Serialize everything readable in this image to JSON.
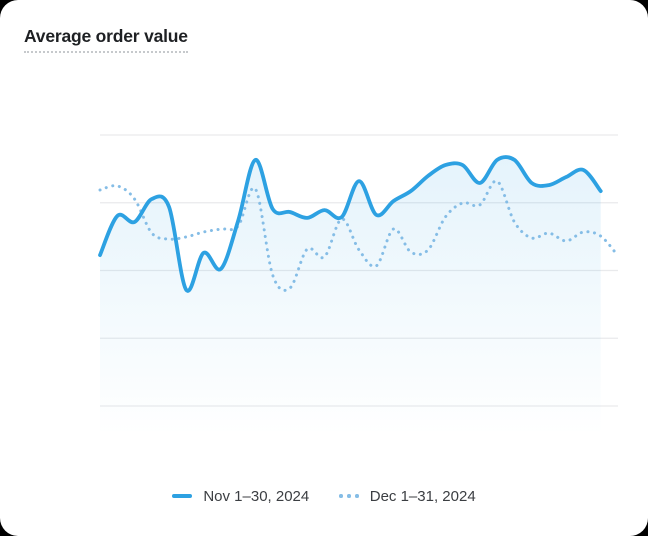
{
  "card": {
    "title": "Average order value"
  },
  "legend": {
    "items": [
      {
        "label": "Nov 1–30, 2024",
        "style": "solid"
      },
      {
        "label": "Dec 1–31, 2024",
        "style": "dotted"
      }
    ]
  },
  "chart_data": {
    "type": "line",
    "title": "Average order value",
    "xlabel": "",
    "ylabel": "",
    "axis_tick_labels_visible": false,
    "grid": "horizontal",
    "gridline_values": [
      0,
      25,
      50,
      75,
      100
    ],
    "ylim": [
      0,
      100
    ],
    "legend_position": "bottom-center",
    "series": [
      {
        "name": "Nov 1–30, 2024",
        "style": "solid",
        "color": "#2da1e2",
        "area_fill": true,
        "x_days": [
          1,
          2,
          3,
          4,
          5,
          6,
          7,
          8,
          9,
          10,
          11,
          12,
          13,
          14,
          15,
          16,
          17,
          18,
          19,
          20,
          21,
          22,
          23,
          24,
          25,
          26,
          27,
          28,
          29,
          30
        ],
        "values": [
          55.7,
          70.1,
          67.9,
          76.4,
          73.4,
          42.8,
          56.5,
          50.6,
          68.3,
          90.8,
          72.7,
          71.6,
          69.4,
          72.3,
          69.7,
          83.0,
          70.5,
          75.6,
          79.3,
          84.9,
          88.9,
          88.9,
          82.3,
          90.8,
          90.8,
          82.3,
          81.5,
          84.5,
          87.1,
          79.3
        ]
      },
      {
        "name": "Dec 1–31, 2024",
        "style": "dotted",
        "color": "#85bde6",
        "area_fill": false,
        "x_days": [
          1,
          2,
          3,
          4,
          5,
          6,
          7,
          8,
          9,
          10,
          11,
          12,
          13,
          14,
          15,
          16,
          17,
          18,
          19,
          20,
          21,
          22,
          23,
          24,
          25,
          26,
          27,
          28,
          29,
          30,
          31
        ],
        "values": [
          79.7,
          81.2,
          76.4,
          63.8,
          61.6,
          62.4,
          64.2,
          65.3,
          66.4,
          80.1,
          48.3,
          43.5,
          57.9,
          55.0,
          69.0,
          57.6,
          51.7,
          65.3,
          56.8,
          57.6,
          69.7,
          74.9,
          74.2,
          83.0,
          67.9,
          62.0,
          63.8,
          60.9,
          64.2,
          62.7,
          55.4
        ]
      }
    ],
    "colors": {
      "accent": "#2da1e2",
      "comparison": "#85bde6",
      "gridline": "#e9eaec",
      "area_top": "rgba(45, 161, 226, 0.13)",
      "area_bottom": "rgba(45, 161, 226, 0)"
    }
  }
}
